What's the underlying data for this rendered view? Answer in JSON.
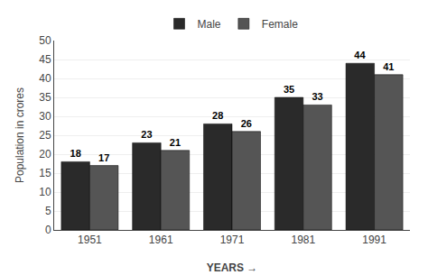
{
  "chart_data": {
    "type": "bar",
    "categories": [
      "1951",
      "1961",
      "1971",
      "1981",
      "1991"
    ],
    "series": [
      {
        "name": "Male",
        "color": "#2a2a2a",
        "values": [
          18,
          23,
          28,
          35,
          44
        ]
      },
      {
        "name": "Female",
        "color": "#555555",
        "values": [
          17,
          21,
          26,
          33,
          41
        ]
      }
    ],
    "xlabel": "YEARS →",
    "ylabel": "Population in crores",
    "ylim": [
      0,
      50
    ],
    "yticks": [
      0,
      5,
      10,
      15,
      20,
      25,
      30,
      35,
      40,
      45,
      50
    ],
    "grid": true,
    "legend": "top",
    "data_labels": true
  }
}
